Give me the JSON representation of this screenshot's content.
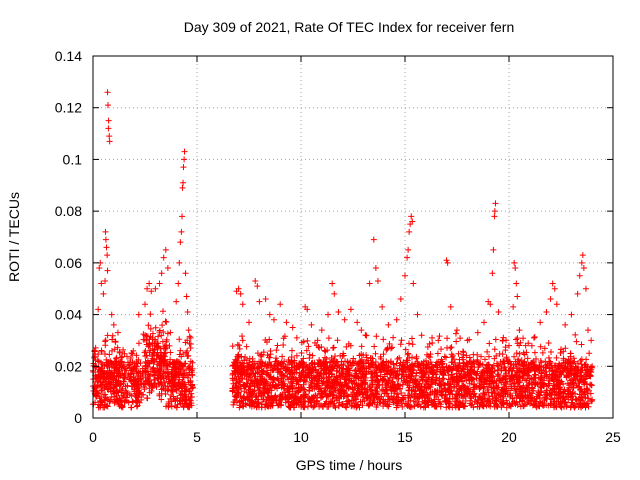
{
  "chart_data": {
    "type": "scatter",
    "title": "Day 309 of 2021, Rate Of TEC Index for receiver fern",
    "xlabel": "GPS time / hours",
    "ylabel": "ROTI / TECUs",
    "xlim": [
      0,
      25
    ],
    "ylim": [
      0,
      0.14
    ],
    "x_ticks": [
      0,
      5,
      10,
      15,
      20,
      25
    ],
    "y_ticks": [
      0,
      0.02,
      0.04,
      0.06,
      0.08,
      0.1,
      0.12,
      0.14
    ],
    "x_tick_labels": [
      "0",
      "5",
      "10",
      "15",
      "20",
      "25"
    ],
    "y_tick_labels": [
      "0",
      "0.02",
      "0.04",
      "0.06",
      "0.08",
      "0.1",
      "0.12",
      "0.14"
    ],
    "grid": true,
    "marker": "+",
    "color": "#ff0000",
    "data_gaps_hours": [
      [
        4.8,
        6.7
      ]
    ],
    "series": [
      {
        "points": [
          [
            0.3,
            0.058
          ],
          [
            0.35,
            0.06
          ],
          [
            0.4,
            0.052
          ],
          [
            0.5,
            0.048
          ],
          [
            0.25,
            0.042
          ],
          [
            0.7,
            0.126
          ],
          [
            0.72,
            0.121
          ],
          [
            0.75,
            0.115
          ],
          [
            0.78,
            0.109
          ],
          [
            0.8,
            0.107
          ],
          [
            0.74,
            0.112
          ],
          [
            0.6,
            0.072
          ],
          [
            0.62,
            0.069
          ],
          [
            0.65,
            0.066
          ],
          [
            0.7,
            0.057
          ],
          [
            0.68,
            0.063
          ],
          [
            0.58,
            0.053
          ],
          [
            0.9,
            0.04
          ],
          [
            1.0,
            0.036
          ],
          [
            1.2,
            0.033
          ],
          [
            2.2,
            0.04
          ],
          [
            2.5,
            0.044
          ],
          [
            2.6,
            0.05
          ],
          [
            2.7,
            0.052
          ],
          [
            2.8,
            0.049
          ],
          [
            3.0,
            0.05
          ],
          [
            3.2,
            0.052
          ],
          [
            3.3,
            0.056
          ],
          [
            3.4,
            0.062
          ],
          [
            3.5,
            0.065
          ],
          [
            3.6,
            0.058
          ],
          [
            4.0,
            0.045
          ],
          [
            4.1,
            0.052
          ],
          [
            4.15,
            0.06
          ],
          [
            4.2,
            0.068
          ],
          [
            4.25,
            0.072
          ],
          [
            4.28,
            0.078
          ],
          [
            4.3,
            0.089
          ],
          [
            4.33,
            0.091
          ],
          [
            4.35,
            0.097
          ],
          [
            4.38,
            0.1
          ],
          [
            4.4,
            0.103
          ],
          [
            4.45,
            0.056
          ],
          [
            4.5,
            0.047
          ],
          [
            4.55,
            0.041
          ],
          [
            4.6,
            0.034
          ],
          [
            4.7,
            0.031
          ],
          [
            6.9,
            0.049
          ],
          [
            7.0,
            0.05
          ],
          [
            7.1,
            0.048
          ],
          [
            7.2,
            0.044
          ],
          [
            7.5,
            0.037
          ],
          [
            7.8,
            0.053
          ],
          [
            7.9,
            0.051
          ],
          [
            8.0,
            0.045
          ],
          [
            8.3,
            0.046
          ],
          [
            8.5,
            0.04
          ],
          [
            8.7,
            0.038
          ],
          [
            9.0,
            0.044
          ],
          [
            9.3,
            0.037
          ],
          [
            9.6,
            0.035
          ],
          [
            9.8,
            0.031
          ],
          [
            10.2,
            0.043
          ],
          [
            10.3,
            0.042
          ],
          [
            10.5,
            0.036
          ],
          [
            10.8,
            0.03
          ],
          [
            11.0,
            0.034
          ],
          [
            11.3,
            0.04
          ],
          [
            11.5,
            0.052
          ],
          [
            11.6,
            0.048
          ],
          [
            11.8,
            0.041
          ],
          [
            12.1,
            0.038
          ],
          [
            12.4,
            0.042
          ],
          [
            12.7,
            0.037
          ],
          [
            12.9,
            0.034
          ],
          [
            13.3,
            0.052
          ],
          [
            13.5,
            0.069
          ],
          [
            13.6,
            0.058
          ],
          [
            13.7,
            0.053
          ],
          [
            13.9,
            0.043
          ],
          [
            14.2,
            0.036
          ],
          [
            14.6,
            0.038
          ],
          [
            14.8,
            0.046
          ],
          [
            15.0,
            0.055
          ],
          [
            15.1,
            0.062
          ],
          [
            15.15,
            0.065
          ],
          [
            15.2,
            0.072
          ],
          [
            15.25,
            0.075
          ],
          [
            15.3,
            0.078
          ],
          [
            15.35,
            0.076
          ],
          [
            15.4,
            0.052
          ],
          [
            15.6,
            0.04
          ],
          [
            15.8,
            0.032
          ],
          [
            16.3,
            0.031
          ],
          [
            16.6,
            0.03
          ],
          [
            17.0,
            0.061
          ],
          [
            17.05,
            0.06
          ],
          [
            17.2,
            0.043
          ],
          [
            17.5,
            0.034
          ],
          [
            18.0,
            0.03
          ],
          [
            18.5,
            0.033
          ],
          [
            18.8,
            0.037
          ],
          [
            19.0,
            0.045
          ],
          [
            19.1,
            0.044
          ],
          [
            19.2,
            0.056
          ],
          [
            19.25,
            0.065
          ],
          [
            19.3,
            0.078
          ],
          [
            19.32,
            0.08
          ],
          [
            19.35,
            0.083
          ],
          [
            19.5,
            0.041
          ],
          [
            19.7,
            0.03
          ],
          [
            20.0,
            0.028
          ],
          [
            20.2,
            0.043
          ],
          [
            20.25,
            0.06
          ],
          [
            20.3,
            0.058
          ],
          [
            20.35,
            0.052
          ],
          [
            20.4,
            0.047
          ],
          [
            20.5,
            0.034
          ],
          [
            20.8,
            0.028
          ],
          [
            21.2,
            0.031
          ],
          [
            21.5,
            0.037
          ],
          [
            21.8,
            0.041
          ],
          [
            22.0,
            0.046
          ],
          [
            22.1,
            0.052
          ],
          [
            22.2,
            0.05
          ],
          [
            22.3,
            0.044
          ],
          [
            22.7,
            0.036
          ],
          [
            23.0,
            0.04
          ],
          [
            23.3,
            0.048
          ],
          [
            23.4,
            0.055
          ],
          [
            23.5,
            0.06
          ],
          [
            23.55,
            0.063
          ],
          [
            23.6,
            0.058
          ],
          [
            23.7,
            0.05
          ],
          [
            23.8,
            0.034
          ],
          [
            23.95,
            0.03
          ]
        ]
      }
    ]
  }
}
